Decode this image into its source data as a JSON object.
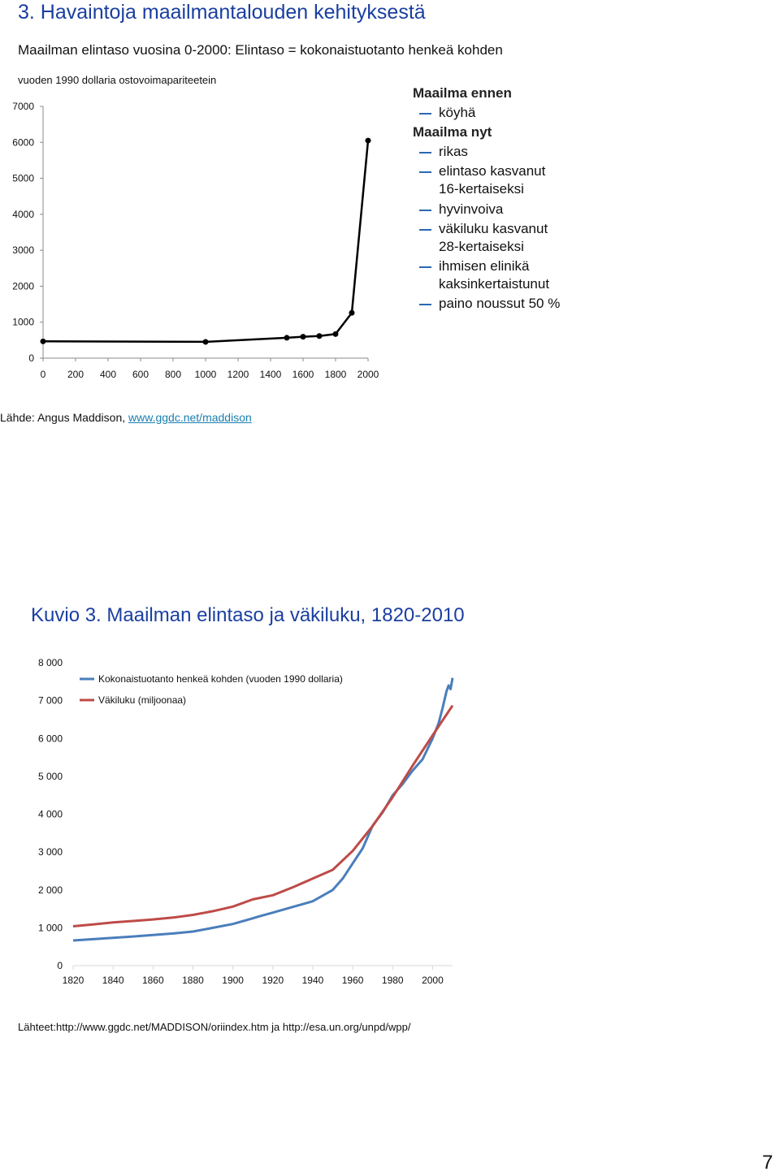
{
  "heading": "3. Havaintoja maailmantalouden kehityksestä",
  "subtitle": "Maailman elintaso vuosina 0-2000: Elintaso = kokonaistuotanto henkeä kohden",
  "bullets": [
    {
      "kind": "header",
      "text": "Maailma ennen"
    },
    {
      "kind": "item",
      "lines": [
        "köyhä"
      ]
    },
    {
      "kind": "header",
      "text": "Maailma nyt"
    },
    {
      "kind": "item",
      "lines": [
        "rikas"
      ]
    },
    {
      "kind": "item",
      "lines": [
        "elintaso kasvanut",
        "16-kertaiseksi"
      ]
    },
    {
      "kind": "item",
      "lines": [
        "hyvinvoiva"
      ]
    },
    {
      "kind": "item",
      "lines": [
        "väkiluku kasvanut",
        "28-kertaiseksi"
      ]
    },
    {
      "kind": "item",
      "lines": [
        "ihmisen elinikä",
        "kaksinkertaistunut"
      ]
    },
    {
      "kind": "item",
      "lines": [
        "paino noussut 50 %"
      ]
    }
  ],
  "source1": {
    "prefix": "Lähde: Angus Maddison, ",
    "link": "www.ggdc.net/maddison"
  },
  "kuvio_title": "Kuvio 3. Maailman elintaso ja väkiluku, 1820-2010",
  "source2": "Lähteet:http://www.ggdc.net/MADDISON/oriindex.htm ja http://esa.un.org/unpd/wpp/",
  "page_number": "7",
  "colors": {
    "heading": "#1a3fa0",
    "series_blue": "#4a7ebb",
    "series_red": "#be4b48",
    "bullet_dash": "#2a67b1"
  },
  "chart_data": [
    {
      "type": "line",
      "title": "",
      "ylabel": "vuoden 1990 dollaria ostovoimapariteetein",
      "xlim": [
        0,
        2000
      ],
      "ylim": [
        0,
        7000
      ],
      "xticks": [
        0,
        200,
        400,
        600,
        800,
        1000,
        1200,
        1400,
        1600,
        1800,
        2000
      ],
      "yticks": [
        0,
        1000,
        2000,
        3000,
        4000,
        5000,
        6000,
        7000
      ],
      "grid": false,
      "points": [
        {
          "x": 0,
          "y": 467
        },
        {
          "x": 1000,
          "y": 453
        },
        {
          "x": 1500,
          "y": 566
        },
        {
          "x": 1600,
          "y": 596
        },
        {
          "x": 1700,
          "y": 616
        },
        {
          "x": 1800,
          "y": 670
        },
        {
          "x": 1900,
          "y": 1260
        },
        {
          "x": 2000,
          "y": 6050
        }
      ]
    },
    {
      "type": "line",
      "title": "",
      "xlim": [
        1820,
        2010
      ],
      "ylim": [
        0,
        8000
      ],
      "xticks": [
        1820,
        1840,
        1860,
        1880,
        1900,
        1920,
        1940,
        1960,
        1980,
        2000
      ],
      "yticks": [
        0,
        1000,
        2000,
        3000,
        4000,
        5000,
        6000,
        7000,
        8000
      ],
      "ytick_labels": [
        "0",
        "1 000",
        "2 000",
        "3 000",
        "4 000",
        "5 000",
        "6 000",
        "7 000",
        "8 000"
      ],
      "grid": false,
      "legend_position": "top-left",
      "series": [
        {
          "name": "Kokonaistuotanto henkeä kohden (vuoden 1990 dollaria)",
          "color": "#4a7ebb",
          "x": [
            1820,
            1830,
            1840,
            1850,
            1860,
            1870,
            1880,
            1890,
            1900,
            1910,
            1913,
            1920,
            1930,
            1940,
            1950,
            1955,
            1960,
            1965,
            1970,
            1975,
            1980,
            1985,
            1990,
            1995,
            2000,
            2003,
            2005,
            2007,
            2008,
            2009,
            2010
          ],
          "y": [
            665,
            700,
            735,
            770,
            810,
            850,
            900,
            1000,
            1100,
            1250,
            1300,
            1400,
            1550,
            1700,
            2000,
            2300,
            2700,
            3100,
            3700,
            4050,
            4500,
            4800,
            5150,
            5450,
            6000,
            6400,
            6800,
            7250,
            7400,
            7300,
            7600
          ]
        },
        {
          "name": "Väkiluku (miljoonaa)",
          "color": "#be4b48",
          "x": [
            1820,
            1830,
            1840,
            1850,
            1860,
            1870,
            1880,
            1890,
            1900,
            1910,
            1920,
            1930,
            1940,
            1950,
            1960,
            1970,
            1980,
            1990,
            2000,
            2010
          ],
          "y": [
            1040,
            1090,
            1140,
            1180,
            1220,
            1270,
            1340,
            1440,
            1560,
            1750,
            1860,
            2070,
            2300,
            2530,
            3030,
            3690,
            4450,
            5280,
            6080,
            6870
          ]
        }
      ]
    }
  ]
}
